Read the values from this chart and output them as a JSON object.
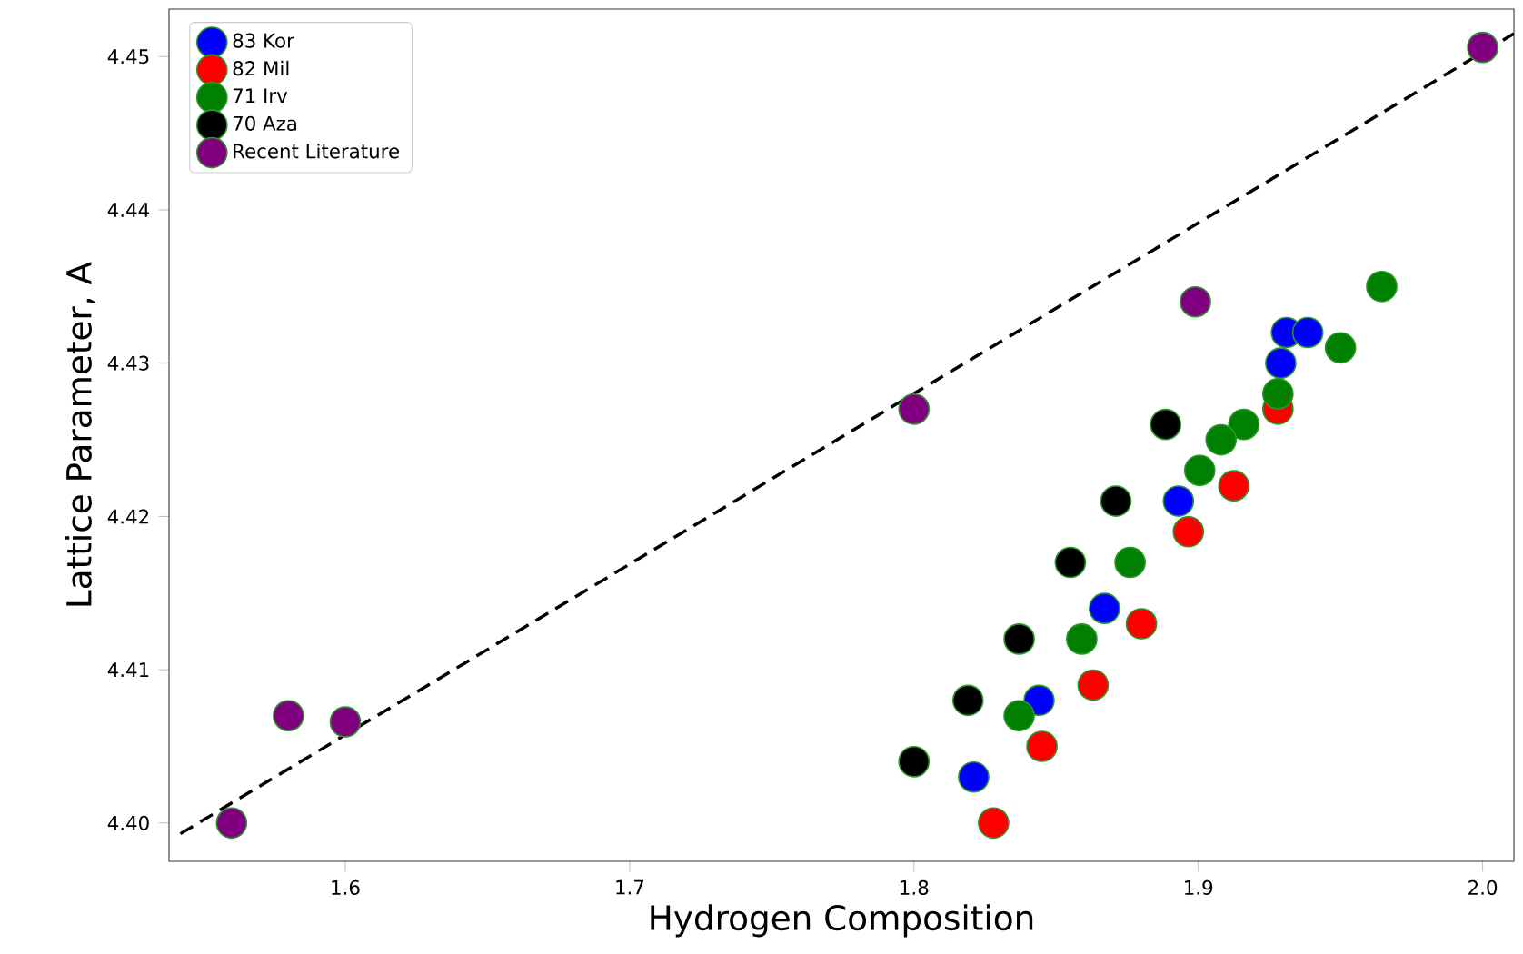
{
  "chart_data": {
    "type": "scatter",
    "xlabel": "Hydrogen Composition",
    "ylabel": "Lattice Parameter, A",
    "xlim": [
      1.538,
      2.011
    ],
    "ylim": [
      4.3975,
      4.4531
    ],
    "xticks": [
      1.6,
      1.7,
      1.8,
      1.9,
      {
        "value": 2.0,
        "label": "2.0"
      }
    ],
    "yticks": [
      {
        "value": 4.4,
        "label": "4.40"
      },
      4.41,
      4.42,
      4.43,
      4.44,
      4.45
    ],
    "grid": false,
    "legend": "top left",
    "marker": "circle",
    "series": [
      {
        "name": "83 Kor",
        "color": "#0000ff",
        "x": [
          1.931,
          1.9385,
          1.929,
          1.893,
          1.867,
          1.844,
          1.821
        ],
        "values": [
          4.432,
          4.432,
          4.43,
          4.421,
          4.414,
          4.408,
          4.403
        ]
      },
      {
        "name": "82 Mil",
        "color": "#ff0000",
        "x": [
          1.928,
          1.9125,
          1.8965,
          1.88,
          1.863,
          1.845,
          1.828
        ],
        "values": [
          4.427,
          4.422,
          4.419,
          4.413,
          4.409,
          4.405,
          4.4
        ]
      },
      {
        "name": "71 Irv",
        "color": "#008000",
        "x": [
          1.9645,
          1.95,
          1.928,
          1.916,
          1.908,
          1.9005,
          1.876,
          1.859,
          1.837
        ],
        "values": [
          4.435,
          4.431,
          4.428,
          4.426,
          4.425,
          4.423,
          4.417,
          4.412,
          4.407
        ]
      },
      {
        "name": "70 Aza",
        "color": "#000000",
        "x": [
          1.8885,
          1.871,
          1.855,
          1.837,
          1.819,
          1.8
        ],
        "values": [
          4.426,
          4.421,
          4.417,
          4.412,
          4.408,
          4.404
        ]
      },
      {
        "name": "Recent Literature",
        "color": "#800080",
        "x": [
          1.56,
          1.58,
          1.6,
          1.8,
          1.899,
          2.0
        ],
        "values": [
          4.4,
          4.407,
          4.4066,
          4.427,
          4.434,
          4.4506
        ]
      },
      {
        "type": "line",
        "color": "#000000",
        "line_style": "dashed",
        "marker": "none",
        "x": [
          1.542,
          2.011
        ],
        "values": [
          4.3993,
          4.4515
        ]
      }
    ]
  }
}
